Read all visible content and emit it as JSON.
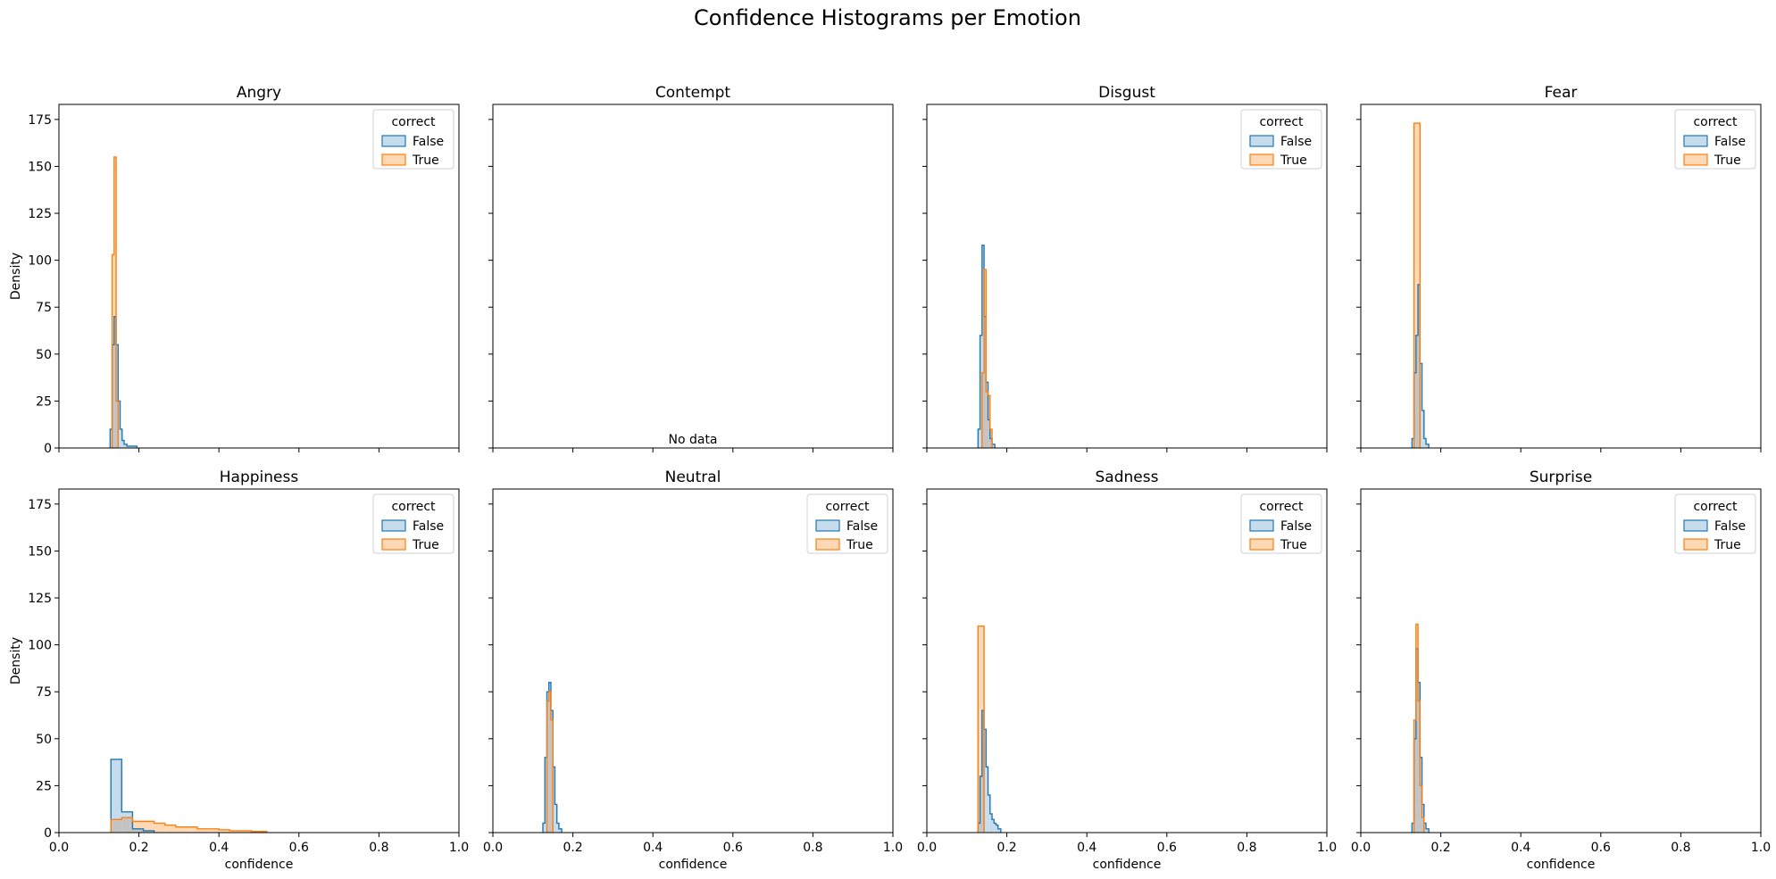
{
  "figure": {
    "title": "Confidence Histograms per Emotion"
  },
  "legend_template": {
    "title": "correct",
    "labels": [
      "False",
      "True"
    ]
  },
  "colors": {
    "false_line": "#1f77b4",
    "false_fill": "#c6dcec",
    "true_line": "#ff7f0e",
    "true_fill": "#ffd8b5",
    "overlap_fill": "#c4c4c4"
  },
  "chart_data": [
    {
      "type": "histogram",
      "title": "Angry",
      "xlabel": "",
      "ylabel": "Density",
      "xlim": [
        0,
        1
      ],
      "ylim": [
        0,
        183
      ],
      "xticks": [
        "0.0",
        "0.2",
        "0.4",
        "0.6",
        "0.8",
        "1.0"
      ],
      "yticks": [
        "0",
        "25",
        "50",
        "75",
        "100",
        "125",
        "150",
        "175"
      ],
      "legend": {
        "title": "correct",
        "items": [
          "False",
          "True"
        ],
        "placement": "top-right"
      },
      "series": [
        {
          "name": "False",
          "bins": [
            [
              0.128,
              0.133,
              10
            ],
            [
              0.133,
              0.138,
              55
            ],
            [
              0.138,
              0.143,
              70
            ],
            [
              0.143,
              0.148,
              55
            ],
            [
              0.148,
              0.153,
              25
            ],
            [
              0.153,
              0.158,
              10
            ],
            [
              0.158,
              0.163,
              4
            ],
            [
              0.163,
              0.17,
              2
            ],
            [
              0.17,
              0.195,
              1
            ]
          ]
        },
        {
          "name": "True",
          "bins": [
            [
              0.133,
              0.138,
              103
            ],
            [
              0.138,
              0.143,
              155
            ],
            [
              0.143,
              0.148,
              25
            ]
          ]
        }
      ]
    },
    {
      "type": "histogram",
      "title": "Contempt",
      "xlabel": "",
      "ylabel": "",
      "xlim": [
        0,
        1
      ],
      "ylim": [
        0,
        183
      ],
      "xticks": [
        "0.0",
        "0.2",
        "0.4",
        "0.6",
        "0.8",
        "1.0"
      ],
      "yticks": [
        "0",
        "25",
        "50",
        "75",
        "100",
        "125",
        "150",
        "175"
      ],
      "annotation": "No data",
      "series": []
    },
    {
      "type": "histogram",
      "title": "Disgust",
      "xlabel": "",
      "ylabel": "",
      "xlim": [
        0,
        1
      ],
      "ylim": [
        0,
        183
      ],
      "xticks": [
        "0.0",
        "0.2",
        "0.4",
        "0.6",
        "0.8",
        "1.0"
      ],
      "yticks": [
        "0",
        "25",
        "50",
        "75",
        "100",
        "125",
        "150",
        "175"
      ],
      "legend": {
        "title": "correct",
        "items": [
          "False",
          "True"
        ],
        "placement": "top-right"
      },
      "series": [
        {
          "name": "False",
          "bins": [
            [
              0.128,
              0.133,
              10
            ],
            [
              0.133,
              0.138,
              60
            ],
            [
              0.138,
              0.143,
              108
            ],
            [
              0.143,
              0.148,
              70
            ],
            [
              0.148,
              0.153,
              35
            ],
            [
              0.153,
              0.158,
              15
            ],
            [
              0.158,
              0.163,
              5
            ],
            [
              0.163,
              0.17,
              2
            ]
          ]
        },
        {
          "name": "True",
          "bins": [
            [
              0.138,
              0.143,
              40
            ],
            [
              0.143,
              0.148,
              95
            ],
            [
              0.148,
              0.153,
              30
            ],
            [
              0.153,
              0.158,
              28
            ],
            [
              0.158,
              0.163,
              10
            ]
          ]
        }
      ]
    },
    {
      "type": "histogram",
      "title": "Fear",
      "xlabel": "",
      "ylabel": "",
      "xlim": [
        0,
        1
      ],
      "ylim": [
        0,
        183
      ],
      "xticks": [
        "0.0",
        "0.2",
        "0.4",
        "0.6",
        "0.8",
        "1.0"
      ],
      "yticks": [
        "0",
        "25",
        "50",
        "75",
        "100",
        "125",
        "150",
        "175"
      ],
      "legend": {
        "title": "correct",
        "items": [
          "False",
          "True"
        ],
        "placement": "top-right"
      },
      "series": [
        {
          "name": "False",
          "bins": [
            [
              0.128,
              0.133,
              5
            ],
            [
              0.133,
              0.138,
              40
            ],
            [
              0.138,
              0.143,
              60
            ],
            [
              0.143,
              0.148,
              87
            ],
            [
              0.148,
              0.153,
              45
            ],
            [
              0.153,
              0.158,
              20
            ],
            [
              0.158,
              0.163,
              5
            ],
            [
              0.163,
              0.17,
              2
            ]
          ]
        },
        {
          "name": "True",
          "bins": [
            [
              0.133,
              0.138,
              173
            ],
            [
              0.138,
              0.143,
              173
            ],
            [
              0.143,
              0.148,
              173
            ]
          ]
        }
      ]
    },
    {
      "type": "histogram",
      "title": "Happiness",
      "xlabel": "confidence",
      "ylabel": "Density",
      "xlim": [
        0,
        1
      ],
      "ylim": [
        0,
        183
      ],
      "xticks": [
        "0.0",
        "0.2",
        "0.4",
        "0.6",
        "0.8",
        "1.0"
      ],
      "yticks": [
        "0",
        "25",
        "50",
        "75",
        "100",
        "125",
        "150",
        "175"
      ],
      "legend": {
        "title": "correct",
        "items": [
          "False",
          "True"
        ],
        "placement": "top-right"
      },
      "series": [
        {
          "name": "False",
          "bins": [
            [
              0.13,
              0.157,
              39
            ],
            [
              0.157,
              0.184,
              11
            ],
            [
              0.184,
              0.211,
              2
            ],
            [
              0.211,
              0.238,
              1
            ]
          ]
        },
        {
          "name": "True",
          "bins": [
            [
              0.13,
              0.157,
              7
            ],
            [
              0.157,
              0.184,
              8
            ],
            [
              0.184,
              0.211,
              6
            ],
            [
              0.211,
              0.238,
              6
            ],
            [
              0.238,
              0.265,
              5
            ],
            [
              0.265,
              0.292,
              4
            ],
            [
              0.292,
              0.319,
              3
            ],
            [
              0.319,
              0.346,
              3
            ],
            [
              0.346,
              0.373,
              2
            ],
            [
              0.373,
              0.4,
              2
            ],
            [
              0.4,
              0.427,
              1.5
            ],
            [
              0.427,
              0.454,
              1
            ],
            [
              0.454,
              0.481,
              1
            ],
            [
              0.481,
              0.52,
              0.6
            ]
          ]
        }
      ]
    },
    {
      "type": "histogram",
      "title": "Neutral",
      "xlabel": "confidence",
      "ylabel": "",
      "xlim": [
        0,
        1
      ],
      "ylim": [
        0,
        183
      ],
      "xticks": [
        "0.0",
        "0.2",
        "0.4",
        "0.6",
        "0.8",
        "1.0"
      ],
      "yticks": [
        "0",
        "25",
        "50",
        "75",
        "100",
        "125",
        "150",
        "175"
      ],
      "legend": {
        "title": "correct",
        "items": [
          "False",
          "True"
        ],
        "placement": "top-right"
      },
      "series": [
        {
          "name": "False",
          "bins": [
            [
              0.125,
              0.13,
              5
            ],
            [
              0.13,
              0.135,
              40
            ],
            [
              0.135,
              0.14,
              75
            ],
            [
              0.14,
              0.145,
              80
            ],
            [
              0.145,
              0.15,
              65
            ],
            [
              0.15,
              0.155,
              35
            ],
            [
              0.155,
              0.16,
              15
            ],
            [
              0.16,
              0.165,
              5
            ],
            [
              0.165,
              0.172,
              2
            ]
          ]
        },
        {
          "name": "True",
          "bins": [
            [
              0.135,
              0.14,
              70
            ],
            [
              0.14,
              0.145,
              75
            ],
            [
              0.145,
              0.15,
              60
            ]
          ]
        }
      ]
    },
    {
      "type": "histogram",
      "title": "Sadness",
      "xlabel": "confidence",
      "ylabel": "",
      "xlim": [
        0,
        1
      ],
      "ylim": [
        0,
        183
      ],
      "xticks": [
        "0.0",
        "0.2",
        "0.4",
        "0.6",
        "0.8",
        "1.0"
      ],
      "yticks": [
        "0",
        "25",
        "50",
        "75",
        "100",
        "125",
        "150",
        "175"
      ],
      "legend": {
        "title": "correct",
        "items": [
          "False",
          "True"
        ],
        "placement": "top-right"
      },
      "series": [
        {
          "name": "False",
          "bins": [
            [
              0.128,
              0.133,
              5
            ],
            [
              0.133,
              0.138,
              30
            ],
            [
              0.138,
              0.143,
              65
            ],
            [
              0.143,
              0.148,
              55
            ],
            [
              0.148,
              0.153,
              35
            ],
            [
              0.153,
              0.158,
              20
            ],
            [
              0.158,
              0.163,
              10
            ],
            [
              0.163,
              0.168,
              7
            ],
            [
              0.168,
              0.173,
              5
            ],
            [
              0.173,
              0.178,
              4
            ],
            [
              0.178,
              0.185,
              2
            ]
          ]
        },
        {
          "name": "True",
          "bins": [
            [
              0.128,
              0.133,
              110
            ],
            [
              0.133,
              0.138,
              110
            ],
            [
              0.138,
              0.143,
              110
            ]
          ]
        }
      ]
    },
    {
      "type": "histogram",
      "title": "Surprise",
      "xlabel": "confidence",
      "ylabel": "",
      "xlim": [
        0,
        1
      ],
      "ylim": [
        0,
        183
      ],
      "xticks": [
        "0.0",
        "0.2",
        "0.4",
        "0.6",
        "0.8",
        "1.0"
      ],
      "yticks": [
        "0",
        "25",
        "50",
        "75",
        "100",
        "125",
        "150",
        "175"
      ],
      "legend": {
        "title": "correct",
        "items": [
          "False",
          "True"
        ],
        "placement": "top-right"
      },
      "series": [
        {
          "name": "False",
          "bins": [
            [
              0.128,
              0.133,
              5
            ],
            [
              0.133,
              0.138,
              50
            ],
            [
              0.138,
              0.143,
              98
            ],
            [
              0.143,
              0.148,
              80
            ],
            [
              0.148,
              0.153,
              40
            ],
            [
              0.153,
              0.158,
              15
            ],
            [
              0.158,
              0.163,
              5
            ],
            [
              0.163,
              0.17,
              2
            ]
          ]
        },
        {
          "name": "True",
          "bins": [
            [
              0.133,
              0.138,
              60
            ],
            [
              0.138,
              0.143,
              111
            ],
            [
              0.143,
              0.148,
              70
            ],
            [
              0.148,
              0.153,
              25
            ],
            [
              0.153,
              0.158,
              8
            ]
          ]
        }
      ]
    }
  ]
}
